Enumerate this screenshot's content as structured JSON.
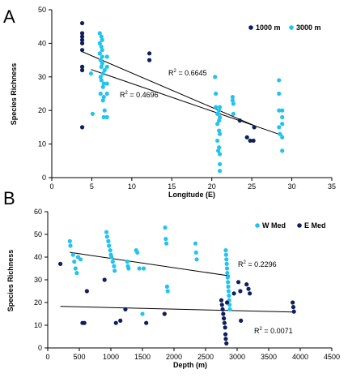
{
  "chart_data": [
    {
      "panel_label": "A",
      "type": "scatter",
      "xlabel": "Longitude (E)",
      "ylabel": "Species Richness",
      "xlim": [
        0,
        35
      ],
      "ylim": [
        0,
        50
      ],
      "xticks": [
        0,
        5,
        10,
        15,
        20,
        25,
        30,
        35
      ],
      "yticks": [
        0,
        10,
        20,
        30,
        40,
        50
      ],
      "legend_position": "top-right",
      "series": [
        {
          "name": "1000 m",
          "color": "#0f1f5c",
          "x": [
            3.8,
            3.8,
            3.8,
            3.8,
            3.8,
            3.8,
            3.8,
            3.8,
            3.8,
            12.2,
            12.2,
            23.5,
            24.4,
            24.8,
            25.2,
            25.3
          ],
          "y": [
            46,
            43,
            42,
            41,
            40,
            38,
            33,
            32,
            15,
            37,
            35,
            17,
            12,
            11,
            11,
            15
          ]
        },
        {
          "name": "3000 m",
          "color": "#22c4ee",
          "x": [
            4.9,
            5.1,
            6.0,
            6.0,
            6.0,
            6.1,
            6.1,
            6.1,
            6.2,
            6.2,
            6.2,
            6.2,
            6.3,
            6.3,
            6.3,
            6.3,
            6.4,
            6.4,
            6.4,
            6.5,
            6.5,
            6.5,
            6.6,
            6.6,
            6.9,
            6.9,
            6.9,
            6.9,
            6.9,
            20.4,
            20.5,
            20.5,
            20.7,
            20.7,
            20.7,
            20.8,
            20.9,
            20.9,
            20.9,
            20.9,
            21.0,
            21.0,
            21.0,
            21.0,
            21.0,
            21.0,
            22.6,
            22.6,
            22.7,
            22.7,
            28.4,
            28.4,
            28.4,
            28.4,
            28.5,
            28.8,
            28.8,
            28.8,
            28.8,
            28.8
          ],
          "y": [
            31,
            19,
            43,
            40,
            37,
            35,
            30,
            25,
            42,
            39,
            33,
            29,
            41,
            38,
            36,
            34,
            31,
            27,
            23,
            28,
            24,
            18,
            32,
            20,
            36,
            33,
            28,
            25,
            18,
            30,
            25,
            21,
            19,
            16,
            11,
            8,
            20,
            17,
            14,
            9,
            21,
            18,
            13,
            7,
            4,
            2,
            24,
            23,
            22,
            19,
            29,
            25,
            20,
            15,
            13,
            8,
            20,
            18,
            16,
            12
          ]
        }
      ],
      "trendlines": [
        {
          "label": "R",
          "superscript": "2",
          "value_text": " = 0.6645",
          "x": [
            3.8,
            25.3
          ],
          "y": [
            37.5,
            15.5
          ]
        },
        {
          "label": "R",
          "superscript": "2",
          "value_text": " = 0.4696",
          "x": [
            4.9,
            28.8
          ],
          "y": [
            32.2,
            12.6
          ]
        }
      ]
    },
    {
      "panel_label": "B",
      "type": "scatter",
      "xlabel": "Depth (m)",
      "ylabel": "Species Richness",
      "xlim": [
        0,
        4500
      ],
      "ylim": [
        0,
        60
      ],
      "xticks": [
        0,
        500,
        1000,
        1500,
        2000,
        2500,
        3000,
        3500,
        4000,
        4500
      ],
      "yticks": [
        0,
        10,
        20,
        30,
        40,
        50,
        60
      ],
      "legend_position": "top-right",
      "series": [
        {
          "name": "W Med",
          "color": "#22c4ee",
          "x": [
            350,
            360,
            400,
            420,
            440,
            460,
            480,
            520,
            930,
            940,
            960,
            970,
            990,
            1000,
            1010,
            1030,
            1050,
            1060,
            1260,
            1270,
            1280,
            1400,
            1420,
            1450,
            1500,
            1520,
            1860,
            1870,
            1880,
            1890,
            1900,
            2340,
            2350,
            2360,
            2820,
            2825,
            2830,
            2835,
            2840,
            2845,
            2850,
            2855,
            2860,
            2865,
            2870,
            2875,
            2880,
            2885
          ],
          "y": [
            47,
            45,
            41,
            38,
            35,
            33,
            40,
            39,
            51,
            49,
            47,
            45,
            43,
            41,
            40,
            38,
            36,
            34,
            38,
            36,
            35,
            43,
            42,
            35,
            15,
            35,
            53,
            48,
            46,
            27,
            25,
            46,
            42,
            39,
            43,
            41,
            39,
            37,
            35,
            33,
            31,
            29,
            27,
            25,
            23,
            21,
            19,
            17
          ]
        },
        {
          "name": "E Med",
          "color": "#0f1f5c",
          "x": [
            200,
            550,
            580,
            620,
            900,
            1080,
            1150,
            1230,
            1560,
            1850,
            2750,
            2760,
            2770,
            2780,
            2790,
            2800,
            2810,
            2815,
            2820,
            2830,
            2840,
            2950,
            3020,
            3050,
            3060,
            3150,
            3180,
            3200,
            3880,
            3890,
            3900
          ],
          "y": [
            37,
            11,
            11,
            25,
            30,
            11,
            12,
            17,
            11,
            15,
            21,
            19,
            17,
            15,
            13,
            11,
            9,
            6,
            4,
            2,
            20,
            24,
            29,
            25,
            12,
            28,
            26,
            24,
            20,
            18,
            16
          ]
        }
      ],
      "trendlines": [
        {
          "label": "R",
          "superscript": "2",
          "value_text": " = 0.2296",
          "x": [
            350,
            2885
          ],
          "y": [
            42.1,
            31.7
          ]
        },
        {
          "label": "R",
          "superscript": "2",
          "value_text": " = 0.0071",
          "x": [
            200,
            3900
          ],
          "y": [
            18.3,
            15.8
          ]
        }
      ]
    }
  ]
}
